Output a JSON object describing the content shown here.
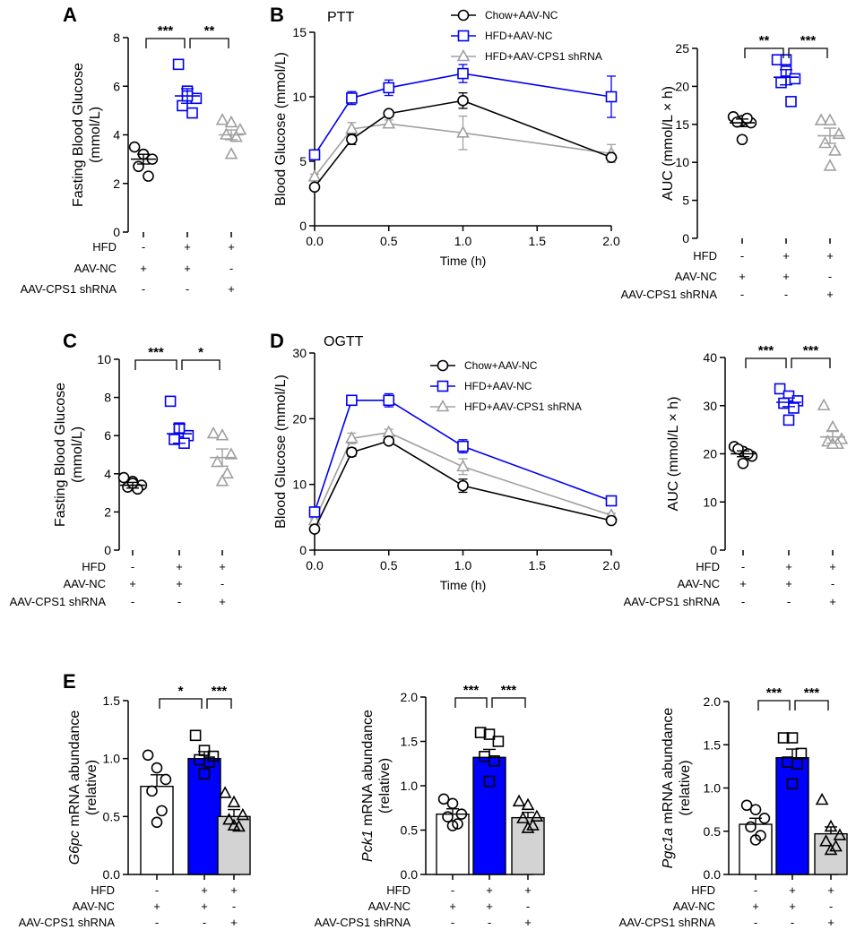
{
  "colors": {
    "chow": "#000000",
    "hfd": "#0000ee",
    "shrna": "#a0a0a0",
    "hfdBar": "#0000ff",
    "shrnaBar": "#d3d3d3"
  },
  "conditions": {
    "labels": [
      "HFD",
      "AAV-NC",
      "AAV-CPS1 shRNA"
    ],
    "signs": [
      [
        "-",
        "+",
        "+"
      ],
      [
        "+",
        "+",
        "-"
      ],
      [
        "-",
        "-",
        "+"
      ]
    ]
  },
  "chart_data": [
    {
      "panel": "A",
      "type": "scatter",
      "ylabel": "Fasting Blood Glucose (mmol/L)",
      "ylabel_lines": [
        "Fasting Blood Glucose",
        "(mmol/L)"
      ],
      "ylim": [
        0,
        8
      ],
      "yticks": [
        0,
        2,
        4,
        6,
        8
      ],
      "yticklabels": [
        "0",
        "2",
        "4",
        "6",
        "8"
      ],
      "groups": [
        {
          "name": "Chow+AAV-NC",
          "marker": "circle",
          "points": [
            3.5,
            3.2,
            3.0,
            2.7,
            2.3,
            3.2
          ],
          "mean": 3.0,
          "sem": 0.2
        },
        {
          "name": "HFD+AAV-NC",
          "marker": "square",
          "points": [
            6.9,
            5.8,
            5.5,
            5.2,
            4.9,
            5.6
          ],
          "mean": 5.6,
          "sem": 0.3
        },
        {
          "name": "HFD+AAV-CPS1 shRNA",
          "marker": "triangle",
          "points": [
            4.6,
            4.5,
            4.2,
            4.0,
            3.9,
            3.2
          ],
          "mean": 4.0,
          "sem": 0.2
        }
      ],
      "sig": [
        {
          "from": 0,
          "to": 1,
          "label": "***"
        },
        {
          "from": 1,
          "to": 2,
          "label": "**"
        }
      ]
    },
    {
      "panel": "B",
      "type": "line",
      "title": "PTT",
      "xlabel": "Time (h)",
      "ylabel": "Blood Glucose (mmol/L)",
      "xlim": [
        0,
        2
      ],
      "ylim": [
        0,
        15
      ],
      "xticks": [
        0,
        0.5,
        1,
        1.5,
        2
      ],
      "xticklabels": [
        "0.0",
        "0.5",
        "1.0",
        "1.5",
        "2.0"
      ],
      "yticks": [
        0,
        5,
        10,
        15
      ],
      "yticklabels": [
        "0",
        "5",
        "10",
        "15"
      ],
      "x": [
        0,
        0.25,
        0.5,
        1,
        2
      ],
      "series": [
        {
          "name": "Chow+AAV-NC",
          "marker": "circle",
          "values": [
            3.0,
            6.7,
            8.7,
            9.7,
            5.3
          ],
          "err": [
            0.1,
            0.4,
            0.2,
            0.6,
            0.2
          ]
        },
        {
          "name": "HFD+AAV-NC",
          "marker": "square",
          "values": [
            5.5,
            9.9,
            10.7,
            11.8,
            10.0
          ],
          "err": [
            0.2,
            0.5,
            0.6,
            0.7,
            1.6
          ]
        },
        {
          "name": "HFD+AAV-CPS1 shRNA",
          "marker": "triangle",
          "values": [
            3.8,
            7.5,
            7.9,
            7.2,
            5.6
          ],
          "err": [
            0.2,
            0.5,
            0.3,
            1.3,
            0.7
          ]
        }
      ]
    },
    {
      "panel": "B-AUC",
      "type": "scatter",
      "ylabel": "AUC (mmol/L × h)",
      "ylim": [
        0,
        25
      ],
      "yticks": [
        0,
        5,
        10,
        15,
        20,
        25
      ],
      "yticklabels": [
        "0",
        "5",
        "10",
        "15",
        "20",
        "25"
      ],
      "groups": [
        {
          "name": "Chow+AAV-NC",
          "marker": "circle",
          "points": [
            16.0,
            15.5,
            15.2,
            15.3,
            15.8,
            13.0
          ],
          "mean": 15.2,
          "sem": 0.5
        },
        {
          "name": "HFD+AAV-NC",
          "marker": "square",
          "points": [
            23.5,
            22.0,
            21.0,
            20.5,
            18.0,
            23.5
          ],
          "mean": 21.2,
          "sem": 1.0
        },
        {
          "name": "HFD+AAV-CPS1 shRNA",
          "marker": "triangle",
          "points": [
            15.5,
            15.5,
            13.7,
            12.5,
            11.5,
            9.5
          ],
          "mean": 13.5,
          "sem": 1.0
        }
      ],
      "sig": [
        {
          "from": 0,
          "to": 1,
          "label": "**"
        },
        {
          "from": 1,
          "to": 2,
          "label": "***"
        }
      ]
    },
    {
      "panel": "C",
      "type": "scatter",
      "ylabel": "Fasting Blood Glucose (mmol/L)",
      "ylabel_lines": [
        "Fasting Blood Glucose",
        "(mmol/L)"
      ],
      "ylim": [
        0,
        10
      ],
      "yticks": [
        0,
        2,
        4,
        6,
        8,
        10
      ],
      "yticklabels": [
        "0",
        "2",
        "4",
        "6",
        "8",
        "10"
      ],
      "groups": [
        {
          "name": "Chow+AAV-NC",
          "marker": "circle",
          "points": [
            3.8,
            3.6,
            3.4,
            3.3,
            3.2,
            3.5
          ],
          "mean": 3.4,
          "sem": 0.15
        },
        {
          "name": "HFD+AAV-NC",
          "marker": "square",
          "points": [
            7.8,
            6.2,
            6.0,
            5.8,
            5.6,
            6.4
          ],
          "mean": 6.1,
          "sem": 0.5
        },
        {
          "name": "HFD+AAV-CPS1 shRNA",
          "marker": "triangle",
          "points": [
            6.1,
            6.0,
            5.0,
            4.6,
            4.0,
            3.6
          ],
          "mean": 4.85,
          "sem": 0.45
        }
      ],
      "sig": [
        {
          "from": 0,
          "to": 1,
          "label": "***"
        },
        {
          "from": 1,
          "to": 2,
          "label": "*"
        }
      ]
    },
    {
      "panel": "D",
      "type": "line",
      "title": "OGTT",
      "xlabel": "Time (h)",
      "ylabel": "Blood Glucose (mmol/L)",
      "xlim": [
        0,
        2
      ],
      "ylim": [
        0,
        30
      ],
      "xticks": [
        0,
        0.5,
        1,
        1.5,
        2
      ],
      "xticklabels": [
        "0.0",
        "0.5",
        "1.0",
        "1.5",
        "2.0"
      ],
      "yticks": [
        0,
        10,
        20,
        30
      ],
      "yticklabels": [
        "0",
        "10",
        "20",
        "30"
      ],
      "x": [
        0,
        0.25,
        0.5,
        1,
        2
      ],
      "series": [
        {
          "name": "Chow+AAV-NC",
          "marker": "circle",
          "values": [
            3.2,
            14.9,
            16.6,
            9.8,
            4.5
          ],
          "err": [
            0.2,
            0.6,
            0.3,
            1.0,
            0.2
          ]
        },
        {
          "name": "HFD+AAV-NC",
          "marker": "square",
          "values": [
            5.8,
            22.8,
            22.8,
            15.8,
            7.5
          ],
          "err": [
            0.3,
            0.3,
            1.0,
            1.0,
            0.3
          ]
        },
        {
          "name": "HFD+AAV-CPS1 shRNA",
          "marker": "triangle",
          "values": [
            4.5,
            17.0,
            17.9,
            12.7,
            5.3
          ],
          "err": [
            0.3,
            0.8,
            0.5,
            1.2,
            0.3
          ]
        }
      ]
    },
    {
      "panel": "D-AUC",
      "type": "scatter",
      "ylabel": "AUC (mmol/L × h)",
      "ylim": [
        0,
        40
      ],
      "yticks": [
        0,
        10,
        20,
        30,
        40
      ],
      "yticklabels": [
        "0",
        "10",
        "20",
        "30",
        "40"
      ],
      "groups": [
        {
          "name": "Chow+AAV-NC",
          "marker": "circle",
          "points": [
            21.5,
            20.5,
            19.5,
            21.0,
            20.0,
            18.0
          ],
          "mean": 20.0,
          "sem": 0.6
        },
        {
          "name": "HFD+AAV-NC",
          "marker": "square",
          "points": [
            33.5,
            32.0,
            31.0,
            30.5,
            29.5,
            27.0
          ],
          "mean": 30.7,
          "sem": 0.9
        },
        {
          "name": "HFD+AAV-CPS1 shRNA",
          "marker": "triangle",
          "points": [
            30.0,
            25.5,
            23.0,
            22.5,
            22.0,
            22.0
          ],
          "mean": 23.5,
          "sem": 1.3
        }
      ],
      "sig": [
        {
          "from": 0,
          "to": 1,
          "label": "***"
        },
        {
          "from": 1,
          "to": 2,
          "label": "***"
        }
      ]
    },
    {
      "panel": "E-G6pc",
      "type": "bar",
      "ylabel_gene": "G6pc",
      "ylabel_rest": " mRNA abundance",
      "ylabel_unit": "(relative)",
      "ylim": [
        0,
        1.5
      ],
      "yticks": [
        0,
        0.5,
        1.0,
        1.5
      ],
      "yticklabels": [
        "0.0",
        "0.5",
        "1.0",
        "1.5"
      ],
      "groups": [
        {
          "name": "Chow+AAV-NC",
          "marker": "circle",
          "value": 0.76,
          "sem": 0.1,
          "points": [
            1.03,
            0.92,
            0.82,
            0.72,
            0.55,
            0.45
          ]
        },
        {
          "name": "HFD+AAV-NC",
          "marker": "square",
          "value": 1.0,
          "sem": 0.06,
          "points": [
            1.2,
            1.07,
            1.02,
            0.99,
            0.97,
            0.87
          ]
        },
        {
          "name": "HFD+AAV-CPS1 shRNA",
          "marker": "triangle",
          "value": 0.5,
          "sem": 0.06,
          "points": [
            0.7,
            0.62,
            0.51,
            0.47,
            0.41,
            0.42
          ]
        }
      ],
      "sig": [
        {
          "from": 0,
          "to": 1,
          "label": "*"
        },
        {
          "from": 1,
          "to": 2,
          "label": "***"
        }
      ]
    },
    {
      "panel": "E-Pck1",
      "type": "bar",
      "ylabel_gene": "Pck1",
      "ylabel_rest": " mRNA abundance",
      "ylabel_unit": "(relative)",
      "ylim": [
        0,
        2.0
      ],
      "yticks": [
        0,
        0.5,
        1.0,
        1.5,
        2.0
      ],
      "yticklabels": [
        "0.0",
        "0.5",
        "1.0",
        "1.5",
        "2.0"
      ],
      "groups": [
        {
          "name": "Chow+AAV-NC",
          "marker": "circle",
          "value": 0.68,
          "sem": 0.06,
          "points": [
            0.85,
            0.8,
            0.68,
            0.65,
            0.57,
            0.55
          ]
        },
        {
          "name": "HFD+AAV-NC",
          "marker": "square",
          "value": 1.32,
          "sem": 0.09,
          "points": [
            1.6,
            1.58,
            1.5,
            1.33,
            1.28,
            1.05
          ]
        },
        {
          "name": "HFD+AAV-CPS1 shRNA",
          "marker": "triangle",
          "value": 0.64,
          "sem": 0.06,
          "points": [
            0.82,
            0.78,
            0.65,
            0.63,
            0.55,
            0.52
          ]
        }
      ],
      "sig": [
        {
          "from": 0,
          "to": 1,
          "label": "***"
        },
        {
          "from": 1,
          "to": 2,
          "label": "***"
        }
      ]
    },
    {
      "panel": "E-Pgc1a",
      "type": "bar",
      "ylabel_gene": "Pgc1a",
      "ylabel_rest": " mRNA abundance",
      "ylabel_unit": "(relative)",
      "ylim": [
        0,
        2.0
      ],
      "yticks": [
        0,
        0.5,
        1.0,
        1.5,
        2.0
      ],
      "yticklabels": [
        "0.0",
        "0.5",
        "1.0",
        "1.5",
        "2.0"
      ],
      "groups": [
        {
          "name": "Chow+AAV-NC",
          "marker": "circle",
          "value": 0.58,
          "sem": 0.07,
          "points": [
            0.8,
            0.75,
            0.65,
            0.55,
            0.45,
            0.4
          ]
        },
        {
          "name": "HFD+AAV-NC",
          "marker": "square",
          "value": 1.35,
          "sem": 0.1,
          "points": [
            1.58,
            1.58,
            1.4,
            1.3,
            1.28,
            1.05
          ]
        },
        {
          "name": "HFD+AAV-CPS1 shRNA",
          "marker": "triangle",
          "value": 0.47,
          "sem": 0.08,
          "points": [
            0.86,
            0.55,
            0.45,
            0.38,
            0.32,
            0.28
          ]
        }
      ],
      "sig": [
        {
          "from": 0,
          "to": 1,
          "label": "***"
        },
        {
          "from": 1,
          "to": 2,
          "label": "***"
        }
      ]
    }
  ]
}
